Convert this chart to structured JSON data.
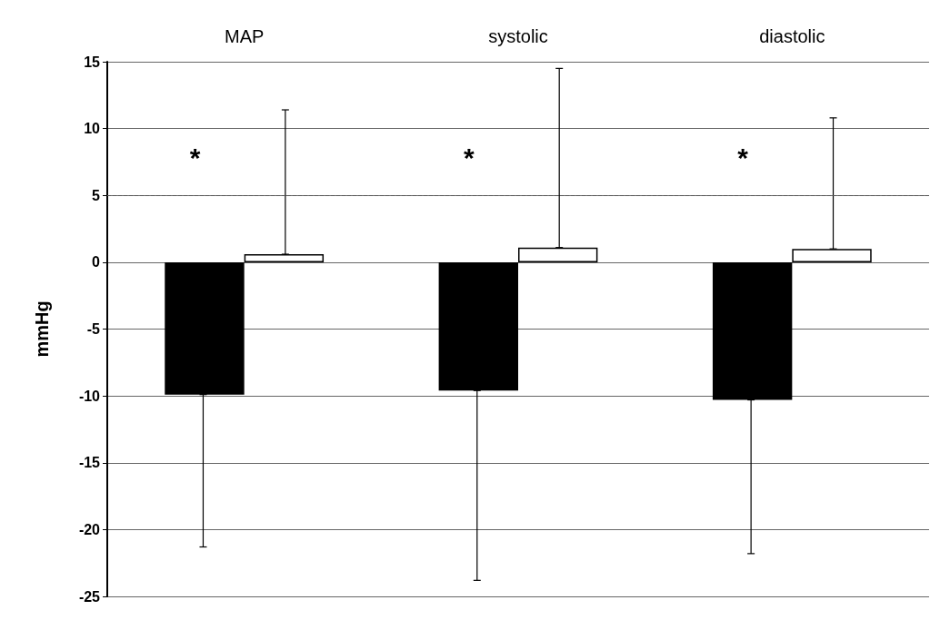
{
  "chart_data": {
    "type": "bar",
    "ylabel": "mmHg",
    "categories": [
      "MAP",
      "systolic",
      "diastolic"
    ],
    "series": [
      {
        "color": "#000000",
        "values": [
          -9.9,
          -9.6,
          -10.3
        ],
        "errors": [
          [
            -21.3,
            -9.9
          ],
          [
            -23.8,
            -9.6
          ],
          [
            -21.8,
            -10.3
          ]
        ]
      },
      {
        "color": "#ffffff",
        "values": [
          0.6,
          1.1,
          1.0
        ],
        "errors": [
          [
            0.6,
            11.4
          ],
          [
            1.1,
            14.5
          ],
          [
            1.0,
            10.8
          ]
        ]
      }
    ],
    "ylim": [
      -25,
      15
    ],
    "yticks": [
      -25,
      -20,
      -15,
      -10,
      -5,
      0,
      5,
      10,
      15
    ],
    "grid": "y",
    "ref_lines": [
      {
        "axis": "y",
        "value": 5,
        "line_style": "dashed",
        "color": "#555555"
      }
    ],
    "annotations": [
      "*",
      "*",
      "*"
    ]
  }
}
